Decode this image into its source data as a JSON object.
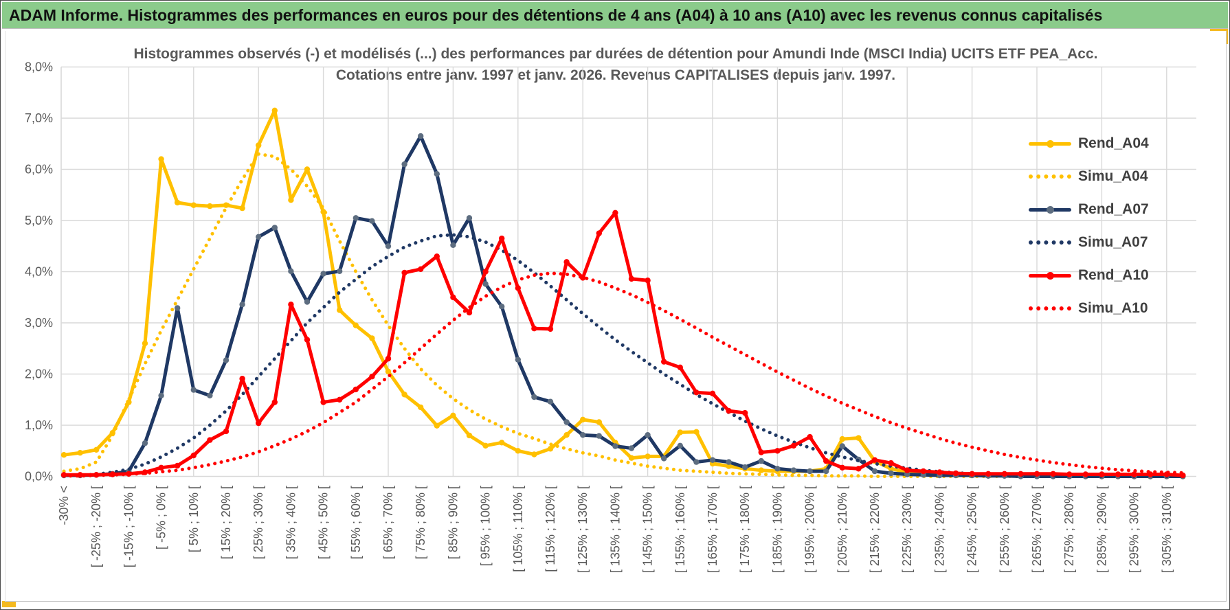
{
  "window": {
    "banner_title": "ADAM Informe. Histogrammes des performances en euros pour des détentions de 4 ans (A04) à 10 ans (A10) avec les revenus connus capitalisés",
    "banner_color": "#8BCB8B",
    "accent_color": "#F4B91F"
  },
  "chart_data": {
    "type": "line",
    "title_line1": "Histogrammes observés (-) et modélisés (...) des performances par durées de détention pour Amundi Inde (MSCI India) UCITS ETF PEA_Acc.",
    "title_line2": "Cotations entre janv. 1997 et janv. 2026. Revenus CAPITALISES depuis janv. 1997.",
    "grid": true,
    "legend_position": "right",
    "n_points": 70,
    "bins_per_label": 2,
    "x_labels": [
      "-30% <",
      "[ -25% ; -20% [",
      "[ -15% ; -10% [",
      "[ -5% ; 0% [",
      "[ 5% ; 10% [",
      "[ 15% ; 20% [",
      "[ 25% ; 30% [",
      "[ 35% ; 40% [",
      "[ 45% ; 50% [",
      "[ 55% ; 60% [",
      "[ 65% ; 70% [",
      "[ 75% ; 80% [",
      "[ 85% ; 90% [",
      "[ 95% ; 100% [",
      "[ 105% ; 110% [",
      "[ 115% ; 120% [",
      "[ 125% ; 130% [",
      "[ 135% ; 140% [",
      "[ 145% ; 150% [",
      "[ 155% ; 160% [",
      "[ 165% ; 170% [",
      "[ 175% ; 180% [",
      "[ 185% ; 190% [",
      "[ 195% ; 200% [",
      "[ 205% ; 210% [",
      "[ 215% ; 220% [",
      "[ 225% ; 230% [",
      "[ 235% ; 240% [",
      "[ 245% ; 250% [",
      "[ 255% ; 260% [",
      "[ 265% ; 270% [",
      "[ 275% ; 280% [",
      "[ 285% ; 290% [",
      "[ 295% ; 300% [",
      "[ 305% ; 310% ["
    ],
    "y_labels": [
      "0,0%",
      "1,0%",
      "2,0%",
      "3,0%",
      "4,0%",
      "5,0%",
      "6,0%",
      "7,0%",
      "8,0%"
    ],
    "ylim": [
      0,
      8
    ],
    "series": [
      {
        "name": "Rend_A04",
        "style": "solid",
        "color": "#FFC000",
        "marker_color": "#FFC000",
        "values": [
          0.42,
          0.46,
          0.52,
          0.85,
          1.45,
          2.6,
          6.2,
          5.35,
          5.3,
          5.28,
          5.3,
          5.24,
          6.47,
          7.15,
          5.4,
          6.0,
          5.17,
          3.25,
          2.95,
          2.7,
          2.05,
          1.6,
          1.35,
          0.99,
          1.19,
          0.8,
          0.6,
          0.66,
          0.5,
          0.43,
          0.54,
          0.81,
          1.11,
          1.06,
          0.66,
          0.36,
          0.39,
          0.39,
          0.86,
          0.87,
          0.25,
          0.2,
          0.15,
          0.12,
          0.1,
          0.1,
          0.1,
          0.15,
          0.73,
          0.75,
          0.3,
          0.15,
          0.08,
          0.05,
          0.03,
          0.03,
          0.02,
          0.02,
          0.02,
          0.02,
          0.01,
          0.01,
          0,
          0,
          0,
          0,
          0,
          0,
          0,
          0
        ]
      },
      {
        "name": "Simu_A04",
        "style": "dotted",
        "color": "#FFC000",
        "values": [
          0.1,
          0.15,
          0.28,
          0.8,
          1.5,
          2.2,
          2.85,
          3.45,
          4.05,
          4.65,
          5.25,
          5.8,
          6.3,
          6.25,
          6.0,
          5.67,
          5.24,
          4.6,
          4.0,
          3.45,
          2.95,
          2.5,
          2.1,
          1.78,
          1.52,
          1.3,
          1.12,
          0.97,
          0.84,
          0.74,
          0.63,
          0.54,
          0.46,
          0.4,
          0.32,
          0.26,
          0.2,
          0.16,
          0.12,
          0.1,
          0.08,
          0.06,
          0.05,
          0.04,
          0.03,
          0.02,
          0.02,
          0.01,
          0.01,
          0.01,
          0,
          0,
          0,
          0,
          0,
          0,
          0,
          0,
          0,
          0,
          0,
          0,
          0,
          0,
          0,
          0,
          0,
          0,
          0,
          0
        ]
      },
      {
        "name": "Rend_A07",
        "style": "solid",
        "color": "#1F3864",
        "marker_color": "#5D6D80",
        "values": [
          0.02,
          0.02,
          0.03,
          0.05,
          0.1,
          0.65,
          1.58,
          3.29,
          1.69,
          1.58,
          2.27,
          3.36,
          4.68,
          4.86,
          4.01,
          3.41,
          3.96,
          4.01,
          5.05,
          4.99,
          4.5,
          6.1,
          6.65,
          5.91,
          4.52,
          5.05,
          3.76,
          3.32,
          2.28,
          1.55,
          1.46,
          1.06,
          0.81,
          0.79,
          0.59,
          0.55,
          0.81,
          0.35,
          0.6,
          0.28,
          0.32,
          0.28,
          0.18,
          0.3,
          0.15,
          0.12,
          0.1,
          0.1,
          0.59,
          0.33,
          0.1,
          0.06,
          0.04,
          0.03,
          0.02,
          0.02,
          0.02,
          0.01,
          0.01,
          0,
          0,
          0,
          0,
          0,
          0,
          0,
          0,
          0,
          0,
          0
        ]
      },
      {
        "name": "Simu_A07",
        "style": "dotted",
        "color": "#1F3864",
        "values": [
          0.01,
          0.02,
          0.04,
          0.08,
          0.14,
          0.24,
          0.38,
          0.55,
          0.75,
          1.0,
          1.28,
          1.6,
          1.95,
          2.3,
          2.65,
          3.0,
          3.3,
          3.6,
          3.85,
          4.1,
          4.3,
          4.48,
          4.6,
          4.7,
          4.72,
          4.68,
          4.58,
          4.42,
          4.22,
          3.98,
          3.72,
          3.45,
          3.18,
          2.92,
          2.67,
          2.44,
          2.22,
          2.0,
          1.8,
          1.6,
          1.42,
          1.25,
          1.08,
          0.93,
          0.79,
          0.67,
          0.56,
          0.46,
          0.38,
          0.31,
          0.25,
          0.2,
          0.16,
          0.12,
          0.09,
          0.07,
          0.05,
          0.04,
          0.03,
          0.02,
          0.02,
          0.01,
          0.01,
          0,
          0,
          0,
          0,
          0,
          0,
          0
        ]
      },
      {
        "name": "Rend_A10",
        "style": "solid",
        "color": "#FF0000",
        "marker_color": "#FF0000",
        "values": [
          0.03,
          0.03,
          0.03,
          0.04,
          0.05,
          0.08,
          0.17,
          0.21,
          0.41,
          0.71,
          0.88,
          1.91,
          1.04,
          1.45,
          3.36,
          2.67,
          1.45,
          1.5,
          1.7,
          1.95,
          2.3,
          3.98,
          4.05,
          4.3,
          3.5,
          3.2,
          4.0,
          4.65,
          3.68,
          2.89,
          2.88,
          4.19,
          3.88,
          4.75,
          5.15,
          3.86,
          3.83,
          2.24,
          2.13,
          1.64,
          1.62,
          1.28,
          1.24,
          0.47,
          0.5,
          0.6,
          0.77,
          0.3,
          0.17,
          0.15,
          0.32,
          0.26,
          0.12,
          0.1,
          0.08,
          0.06,
          0.05,
          0.05,
          0.05,
          0.05,
          0.05,
          0.05,
          0.04,
          0.04,
          0.04,
          0.04,
          0.04,
          0.04,
          0.04,
          0.02
        ]
      },
      {
        "name": "Simu_A10",
        "style": "dotted",
        "color": "#FF0000",
        "values": [
          0.01,
          0.01,
          0.02,
          0.03,
          0.04,
          0.06,
          0.09,
          0.12,
          0.17,
          0.23,
          0.3,
          0.38,
          0.48,
          0.6,
          0.73,
          0.88,
          1.05,
          1.25,
          1.45,
          1.7,
          1.95,
          2.22,
          2.5,
          2.78,
          3.05,
          3.3,
          3.52,
          3.7,
          3.84,
          3.93,
          3.97,
          3.95,
          3.89,
          3.8,
          3.68,
          3.55,
          3.4,
          3.24,
          3.07,
          2.9,
          2.72,
          2.55,
          2.38,
          2.21,
          2.04,
          1.88,
          1.72,
          1.57,
          1.43,
          1.3,
          1.17,
          1.05,
          0.94,
          0.84,
          0.74,
          0.65,
          0.57,
          0.5,
          0.43,
          0.37,
          0.32,
          0.27,
          0.23,
          0.19,
          0.16,
          0.13,
          0.11,
          0.09,
          0.08,
          0.07
        ]
      }
    ],
    "colors": {
      "gridline": "#D9D9D9",
      "axis_text": "#595959",
      "title_text": "#595959",
      "legend_text": "#404040"
    }
  }
}
